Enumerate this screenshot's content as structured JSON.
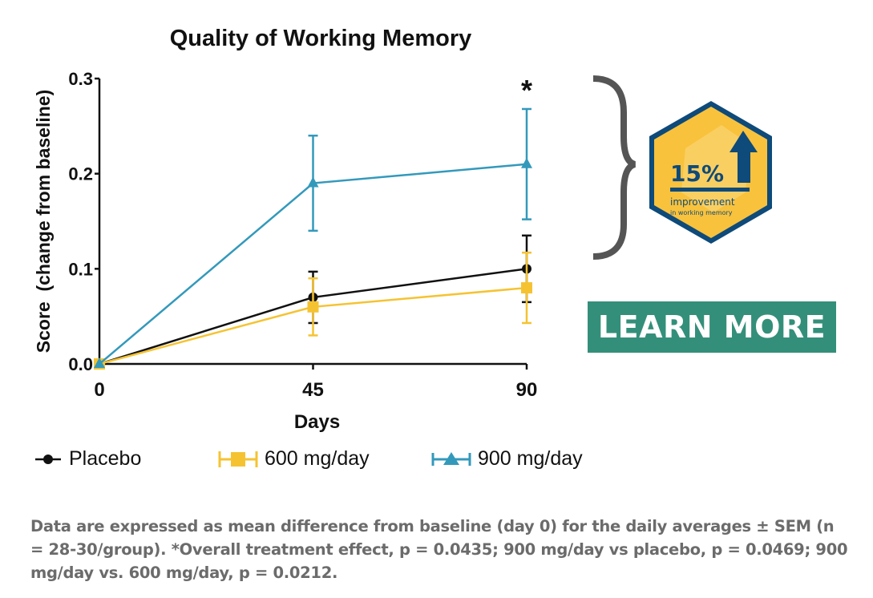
{
  "chart_data": {
    "type": "line",
    "title": "Quality of Working Memory",
    "xlabel": "Days",
    "ylabel": "Score  (change from baseline)",
    "x": [
      0,
      45,
      90
    ],
    "x_ticks": [
      "0",
      "45",
      "90"
    ],
    "y_ticks": [
      "0.0",
      "0.1",
      "0.2",
      "0.3"
    ],
    "ylim": [
      0,
      0.3
    ],
    "grid": false,
    "legend_position": "bottom",
    "series": [
      {
        "name": "Placebo",
        "values": [
          0,
          0.07,
          0.1
        ],
        "sem": [
          0,
          0.027,
          0.035
        ],
        "color": "#111111",
        "marker": "circle"
      },
      {
        "name": "600 mg/day",
        "values": [
          0,
          0.06,
          0.08
        ],
        "sem": [
          0,
          0.03,
          0.037
        ],
        "color": "#f5c332",
        "marker": "square"
      },
      {
        "name": "900 mg/day",
        "values": [
          0,
          0.19,
          0.21
        ],
        "sem": [
          0,
          0.05,
          0.058
        ],
        "color": "#3399bb",
        "marker": "triangle"
      }
    ],
    "annotations": [
      {
        "text": "*",
        "x": 90
      }
    ]
  },
  "badge": {
    "value": "15%",
    "line1": "improvement",
    "line2": "in working memory",
    "fill": "#f9c23c",
    "border": "#0e4a7a"
  },
  "cta": {
    "label": "LEARN MORE",
    "color": "#348f7a"
  },
  "caption": "Data are expressed as mean difference from baseline (day 0) for the daily averages ± SEM (n = 28-30/group).  *Overall treatment effect, p = 0.0435; 900 mg/day vs placebo, p = 0.0469; 900 mg/day vs. 600 mg/day, p = 0.0212."
}
